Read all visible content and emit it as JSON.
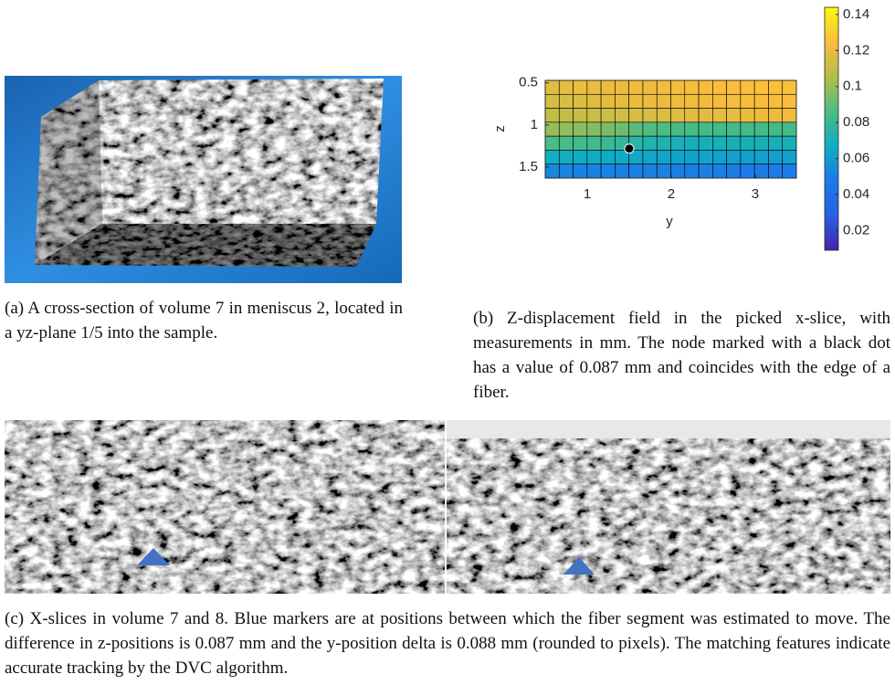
{
  "chart_data": {
    "type": "heatmap",
    "xlabel": "y",
    "ylabel": "z",
    "xlim": [
      0.5,
      3.49
    ],
    "ylim": [
      0.47,
      1.63
    ],
    "xticks": [
      1,
      2,
      3
    ],
    "yticks": [
      0.5,
      1,
      1.5
    ],
    "values": [
      [
        0.118,
        0.119,
        0.12,
        0.12,
        0.121,
        0.121,
        0.122,
        0.122,
        0.123,
        0.123,
        0.124,
        0.124,
        0.125,
        0.125,
        0.125,
        0.126,
        0.126,
        0.126
      ],
      [
        0.114,
        0.115,
        0.116,
        0.117,
        0.118,
        0.119,
        0.12,
        0.12,
        0.121,
        0.121,
        0.122,
        0.122,
        0.123,
        0.123,
        0.124,
        0.124,
        0.124,
        0.125
      ],
      [
        0.108,
        0.109,
        0.11,
        0.111,
        0.112,
        0.113,
        0.114,
        0.115,
        0.116,
        0.117,
        0.118,
        0.118,
        0.119,
        0.12,
        0.12,
        0.121,
        0.121,
        0.122
      ],
      [
        0.1,
        0.099,
        0.098,
        0.097,
        0.095,
        0.092,
        0.089,
        0.087,
        0.086,
        0.085,
        0.085,
        0.084,
        0.084,
        0.084,
        0.084,
        0.084,
        0.084,
        0.084
      ],
      [
        0.086,
        0.085,
        0.084,
        0.083,
        0.081,
        0.079,
        0.076,
        0.073,
        0.072,
        0.071,
        0.07,
        0.07,
        0.07,
        0.07,
        0.07,
        0.07,
        0.07,
        0.07
      ],
      [
        0.068,
        0.068,
        0.067,
        0.067,
        0.066,
        0.066,
        0.065,
        0.064,
        0.064,
        0.063,
        0.063,
        0.063,
        0.062,
        0.062,
        0.062,
        0.062,
        0.062,
        0.062
      ],
      [
        0.052,
        0.052,
        0.051,
        0.051,
        0.051,
        0.05,
        0.05,
        0.05,
        0.05,
        0.049,
        0.049,
        0.049,
        0.049,
        0.048,
        0.048,
        0.048,
        0.048,
        0.048
      ]
    ],
    "clim": [
      0.009,
      0.144
    ],
    "cticks": [
      0.02,
      0.04,
      0.06,
      0.08,
      0.1,
      0.12,
      0.14
    ],
    "colormap": [
      "#3e26a8",
      "#2a5fe6",
      "#1c7ae8",
      "#0fadc4",
      "#4cbc82",
      "#b4bd4a",
      "#fbbc3c",
      "#f9fb0e"
    ],
    "grid_color": "#000000",
    "marker": {
      "y": 1.5,
      "z": 1.28,
      "color": "#000000"
    }
  },
  "captions": {
    "a": "(a) A cross-section of volume 7 in meniscus 2, located in a yz-plane 1/5 into the sample.",
    "b": "(b) Z-displacement field in the picked x-slice, with measurements in mm. The node marked with a black dot has a value of 0.087 mm and coincides with the edge of a fiber.",
    "c": "(c) X-slices in volume 7 and 8. Blue markers are at positions between which the fiber segment was estimated to move. The difference in z-positions is 0.087 mm and the y-position delta is 0.088 mm (rounded to pixels). The matching features indicate accurate tracking by the DVC algorithm."
  }
}
